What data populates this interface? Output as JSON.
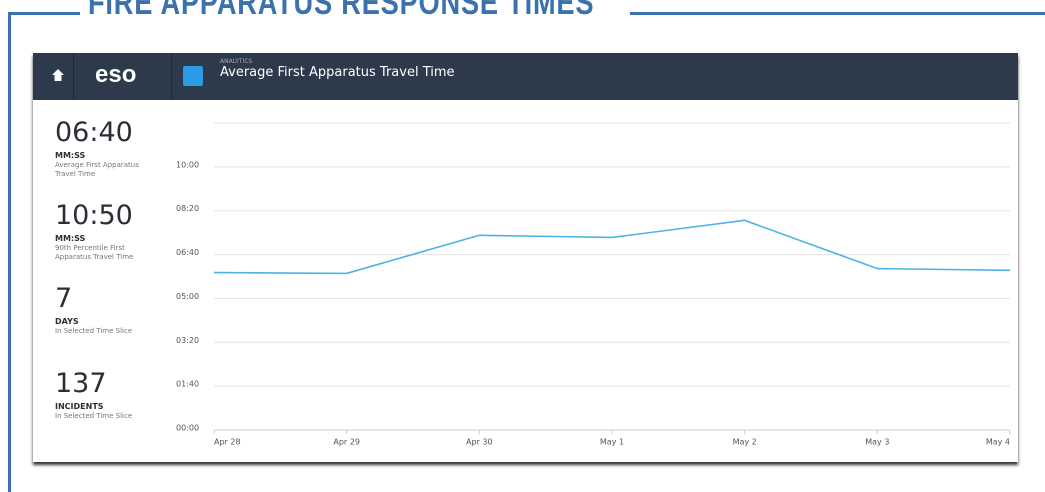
{
  "header": {
    "title": "FIRE APPARATUS RESPONSE TIMES"
  },
  "app_bar": {
    "logo": "eso",
    "section": "ANALYTICS",
    "title": "Average First Apparatus Travel Time"
  },
  "stats": [
    {
      "value": "06:40",
      "unit": "MM:SS",
      "description": "Average First Apparatus Travel Time"
    },
    {
      "value": "10:50",
      "unit": "MM:SS",
      "description": "90th Percentile First Apparatus Travel Time"
    },
    {
      "value": "7",
      "unit": "DAYS",
      "description": "In Selected Time Slice"
    },
    {
      "value": "137",
      "unit": "INCIDENTS",
      "description": "In Selected Time Slice"
    }
  ],
  "chart_data": {
    "type": "line",
    "categories": [
      "Apr 28",
      "Apr 29",
      "Apr 30",
      "May 1",
      "May 2",
      "May 3",
      "May 4"
    ],
    "values": [
      359,
      357,
      444,
      439,
      478,
      368,
      364
    ],
    "color": "#4db3e6",
    "ylim": [
      0,
      700
    ],
    "yticks": [
      {
        "value": 0,
        "label": "00:00"
      },
      {
        "value": 100,
        "label": "01:40"
      },
      {
        "value": 200,
        "label": "03:20"
      },
      {
        "value": 300,
        "label": "05:00"
      },
      {
        "value": 400,
        "label": "06:40"
      },
      {
        "value": 500,
        "label": "08:20"
      },
      {
        "value": 600,
        "label": "10:00"
      }
    ],
    "grid": true
  }
}
